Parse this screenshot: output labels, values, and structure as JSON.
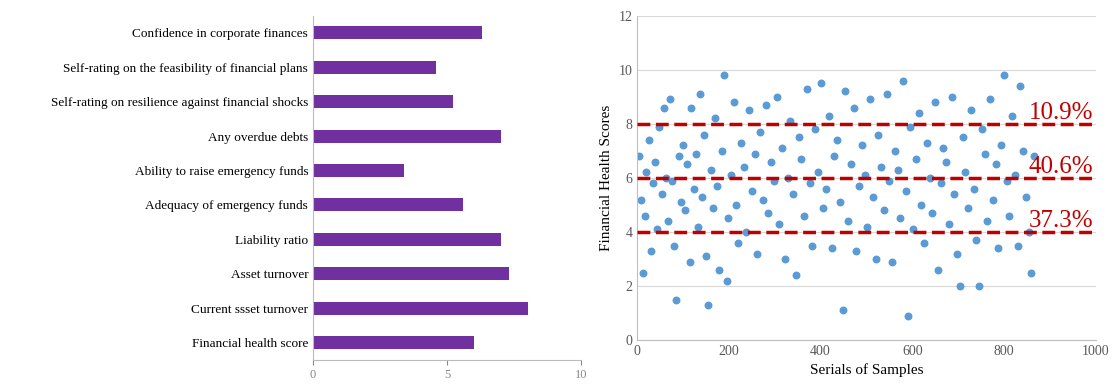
{
  "chart_data": [
    {
      "type": "bar",
      "orientation": "horizontal",
      "categories": [
        "Confidence in corporate finances",
        "Self-rating on the feasibility of financial plans",
        "Self-rating on resilience against financial shocks",
        "Any overdue debts",
        "Ability to raise emergency funds",
        "Adequacy of emergency funds",
        "Liability ratio",
        "Asset turnover",
        "Current ssset turnover",
        "Financial health score"
      ],
      "values": [
        6.3,
        4.6,
        5.2,
        7.0,
        3.4,
        5.6,
        7.0,
        7.3,
        8.0,
        6.0
      ],
      "color": "#7030a0",
      "xlim": [
        0,
        10
      ],
      "xticks": [
        0,
        5,
        10
      ]
    },
    {
      "type": "scatter",
      "xlabel": "Serials of Samples",
      "ylabel": "Financial Health Scores",
      "x": [
        3,
        8,
        12,
        16,
        20,
        25,
        30,
        34,
        39,
        44,
        48,
        53,
        58,
        62,
        67,
        72,
        76,
        81,
        85,
        90,
        95,
        100,
        104,
        109,
        114,
        118,
        123,
        128,
        132,
        137,
        142,
        146,
        151,
        155,
        160,
        165,
        170,
        174,
        179,
        184,
        190,
        195,
        199,
        204,
        210,
        215,
        220,
        226,
        232,
        238,
        244,
        250,
        256,
        262,
        268,
        274,
        280,
        286,
        292,
        298,
        304,
        310,
        316,
        322,
        328,
        334,
        340,
        346,
        352,
        358,
        364,
        370,
        376,
        382,
        388,
        394,
        400,
        406,
        412,
        418,
        424,
        430,
        436,
        442,
        448,
        454,
        460,
        466,
        472,
        478,
        484,
        490,
        496,
        502,
        508,
        514,
        520,
        526,
        532,
        538,
        544,
        550,
        556,
        562,
        568,
        574,
        580,
        586,
        590,
        596,
        602,
        608,
        614,
        620,
        626,
        632,
        638,
        644,
        650,
        656,
        662,
        668,
        674,
        680,
        686,
        692,
        698,
        704,
        710,
        716,
        722,
        728,
        734,
        740,
        746,
        752,
        758,
        764,
        770,
        776,
        782,
        788,
        794,
        800,
        806,
        812,
        818,
        824,
        830,
        836,
        842,
        848,
        854,
        860,
        865
      ],
      "values": [
        6.8,
        5.2,
        2.5,
        4.6,
        6.2,
        7.4,
        3.3,
        5.8,
        6.6,
        4.1,
        7.9,
        5.4,
        8.6,
        6.0,
        4.4,
        8.9,
        5.9,
        3.5,
        1.5,
        6.8,
        5.1,
        7.2,
        4.8,
        6.5,
        2.9,
        8.6,
        5.6,
        6.9,
        4.2,
        9.1,
        5.3,
        7.6,
        3.1,
        1.3,
        6.3,
        4.9,
        8.2,
        5.7,
        2.6,
        7.0,
        9.8,
        2.2,
        4.5,
        6.1,
        8.8,
        5.0,
        3.6,
        7.3,
        6.4,
        4.0,
        8.5,
        5.5,
        6.9,
        3.2,
        7.7,
        5.2,
        8.7,
        4.7,
        6.6,
        5.9,
        9.0,
        4.3,
        7.1,
        3.0,
        6.0,
        8.1,
        5.4,
        2.4,
        7.5,
        6.7,
        4.6,
        9.3,
        5.8,
        3.5,
        7.8,
        6.2,
        9.5,
        4.9,
        5.6,
        8.3,
        3.4,
        6.8,
        7.4,
        5.1,
        1.1,
        9.2,
        4.4,
        6.5,
        8.6,
        3.3,
        5.7,
        7.2,
        6.1,
        4.2,
        8.9,
        5.3,
        3.0,
        7.6,
        6.4,
        4.8,
        9.1,
        5.9,
        2.9,
        7.0,
        6.3,
        4.5,
        9.6,
        5.5,
        0.9,
        7.9,
        4.1,
        6.7,
        8.4,
        5.0,
        3.6,
        7.3,
        6.0,
        4.7,
        8.8,
        2.6,
        5.8,
        7.1,
        6.6,
        4.3,
        9.0,
        5.4,
        3.2,
        2.0,
        7.5,
        6.2,
        4.9,
        8.5,
        5.6,
        3.7,
        2.0,
        7.8,
        6.9,
        4.4,
        8.9,
        5.2,
        6.5,
        3.4,
        7.2,
        9.8,
        5.9,
        4.6,
        8.3,
        6.1,
        3.5,
        9.4,
        7.0,
        5.3,
        4.0,
        2.5,
        6.8
      ],
      "color": "#5b9bd5",
      "xlim": [
        0,
        1000
      ],
      "xticks": [
        0,
        200,
        400,
        600,
        800,
        1000
      ],
      "ylim": [
        0,
        12
      ],
      "yticks": [
        0,
        2,
        4,
        6,
        8,
        10,
        12
      ],
      "grid": true,
      "annotations": [
        {
          "y": 8,
          "text": "10.9%"
        },
        {
          "y": 6,
          "text": "40.6%"
        },
        {
          "y": 4,
          "text": "37.3%"
        }
      ]
    }
  ]
}
